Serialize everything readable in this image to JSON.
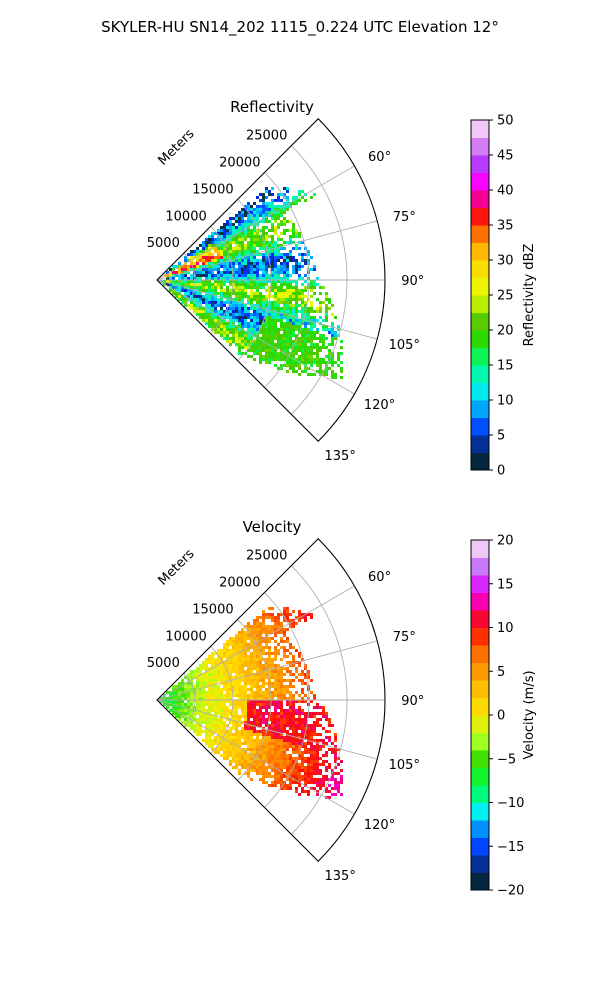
{
  "figure": {
    "title": "SKYLER-HU  SN14_202  1115_0.224 UTC Elevation 12°"
  },
  "chart_data": [
    {
      "type": "heatmap",
      "projection": "polar-sector",
      "title": "Reflectivity",
      "radial_label": "Meters",
      "radial_ticks": [
        5000,
        10000,
        15000,
        20000,
        25000
      ],
      "radial_tick_labels": [
        "5000",
        "10000",
        "15000",
        "20000",
        "25000"
      ],
      "rmax": 30000,
      "angle_range_deg": [
        45,
        135
      ],
      "angle_ticks": [
        60,
        75,
        90,
        105,
        120,
        135
      ],
      "angle_tick_labels": [
        "60°",
        "75°",
        "90°",
        "105°",
        "120°",
        "135°"
      ],
      "grid": true,
      "colorbar": {
        "label": "Reflectivity dBZ",
        "min": 0,
        "max": 50,
        "ticks": [
          0,
          5,
          10,
          15,
          20,
          25,
          30,
          35,
          40,
          45,
          50
        ],
        "tick_labels": [
          "0",
          "5",
          "10",
          "15",
          "20",
          "25",
          "30",
          "35",
          "40",
          "45",
          "50"
        ],
        "stops": [
          [
            0,
            "#001050"
          ],
          [
            2.5,
            "#0a4030"
          ],
          [
            5,
            "#0020ff"
          ],
          [
            8,
            "#0090ff"
          ],
          [
            11,
            "#00e8f0"
          ],
          [
            15,
            "#00ff90"
          ],
          [
            18,
            "#20e000"
          ],
          [
            21,
            "#50c800"
          ],
          [
            25,
            "#e8ff00"
          ],
          [
            30,
            "#ffd400"
          ],
          [
            33,
            "#ff9000"
          ],
          [
            36,
            "#ff1800"
          ],
          [
            38,
            "#f00070"
          ],
          [
            41,
            "#ff00ff"
          ],
          [
            44,
            "#b040ff"
          ],
          [
            47,
            "#e090f0"
          ],
          [
            50,
            "#fff0ff"
          ]
        ]
      },
      "echo_bands": [
        {
          "angles_deg": [
            55,
            65
          ],
          "r_range_m": [
            6000,
            18000
          ],
          "values": [
            18,
            28
          ]
        },
        {
          "angles_deg": [
            65,
            115
          ],
          "r_range_m": [
            0,
            24000
          ],
          "values": [
            10,
            24
          ]
        },
        {
          "angles_deg": [
            115,
            125
          ],
          "r_range_m": [
            8000,
            27000
          ],
          "values": [
            16,
            24
          ]
        },
        {
          "angles_deg": [
            60,
            70
          ],
          "r_range_m": [
            4000,
            9000
          ],
          "values": [
            28,
            36
          ]
        }
      ]
    },
    {
      "type": "heatmap",
      "projection": "polar-sector",
      "title": "Velocity",
      "radial_label": "Meters",
      "radial_ticks": [
        5000,
        10000,
        15000,
        20000,
        25000
      ],
      "radial_tick_labels": [
        "5000",
        "10000",
        "15000",
        "20000",
        "25000"
      ],
      "rmax": 30000,
      "angle_range_deg": [
        45,
        135
      ],
      "angle_ticks": [
        60,
        75,
        90,
        105,
        120,
        135
      ],
      "angle_tick_labels": [
        "60°",
        "75°",
        "90°",
        "105°",
        "120°",
        "135°"
      ],
      "grid": true,
      "colorbar": {
        "label": "Velocity (m/s)",
        "min": -20,
        "max": 20,
        "ticks": [
          -20,
          -15,
          -10,
          -5,
          0,
          5,
          10,
          15,
          20
        ],
        "tick_labels": [
          "−20",
          "−15",
          "−10",
          "−5",
          "0",
          "5",
          "10",
          "15",
          "20"
        ],
        "stops": [
          [
            -20,
            "#001050"
          ],
          [
            -18,
            "#0a4030"
          ],
          [
            -16,
            "#0020ff"
          ],
          [
            -13,
            "#0090ff"
          ],
          [
            -11,
            "#00f0f0"
          ],
          [
            -8,
            "#00ff40"
          ],
          [
            -5,
            "#40e000"
          ],
          [
            -3,
            "#a0ff20"
          ],
          [
            0,
            "#ffe800"
          ],
          [
            4,
            "#ffb000"
          ],
          [
            7,
            "#ff7000"
          ],
          [
            10,
            "#ff1000"
          ],
          [
            12,
            "#f00060"
          ],
          [
            14,
            "#ff00ff"
          ],
          [
            16,
            "#b050ff"
          ],
          [
            18,
            "#e0a0f0"
          ],
          [
            20,
            "#fff0ff"
          ]
        ]
      },
      "velocity_field": {
        "near_range_m_per_s": -8,
        "mid_range_m_per_s": 0,
        "far_range_m_per_s": 10
      }
    }
  ]
}
